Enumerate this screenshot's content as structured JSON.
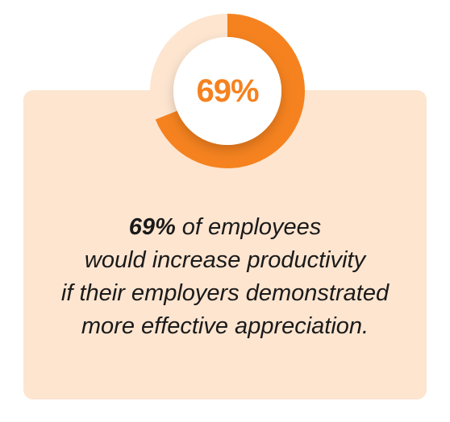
{
  "colors": {
    "accent": "#f5821f",
    "track": "#fde5d0",
    "card": "#fde5d0",
    "text": "#1a1a1a"
  },
  "chart_data": {
    "type": "pie",
    "variant": "donut",
    "value_percent": 69,
    "center_label": "69%",
    "slices": [
      {
        "label": "69%",
        "value": 69
      },
      {
        "label": "",
        "value": 31
      }
    ]
  },
  "caption": {
    "highlight": "69%",
    "line1_rest": " of employees",
    "line2": "would increase productivity",
    "line3": "if their employers demonstrated",
    "line4": "more effective appreciation."
  }
}
